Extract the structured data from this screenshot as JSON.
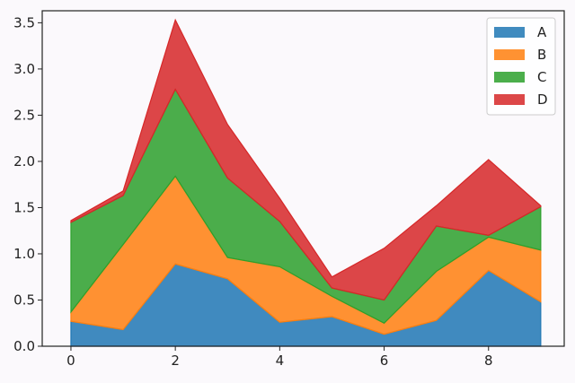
{
  "chart_data": {
    "type": "area",
    "stacked": true,
    "x": [
      0,
      1,
      2,
      3,
      4,
      5,
      6,
      7,
      8,
      9
    ],
    "series": [
      {
        "name": "A",
        "color": "#1f77b4",
        "values": [
          0.27,
          0.18,
          0.89,
          0.73,
          0.26,
          0.32,
          0.13,
          0.28,
          0.82,
          0.48
        ]
      },
      {
        "name": "B",
        "color": "#ff7f0e",
        "values": [
          0.1,
          0.92,
          0.95,
          0.23,
          0.6,
          0.22,
          0.12,
          0.53,
          0.36,
          0.56
        ]
      },
      {
        "name": "C",
        "color": "#2ca02c",
        "values": [
          0.97,
          0.53,
          0.94,
          0.86,
          0.49,
          0.09,
          0.25,
          0.49,
          0.02,
          0.47
        ]
      },
      {
        "name": "D",
        "color": "#d62728",
        "values": [
          0.02,
          0.05,
          0.75,
          0.58,
          0.25,
          0.12,
          0.56,
          0.22,
          0.82,
          0.01
        ]
      }
    ],
    "xlim": [
      -0.55,
      9.45
    ],
    "ylim": [
      0,
      3.63
    ],
    "xticks": [
      0,
      2,
      4,
      6,
      8
    ],
    "xtick_labels": [
      "0",
      "2",
      "4",
      "6",
      "8"
    ],
    "yticks": [
      0,
      0.5,
      1.0,
      1.5,
      2.0,
      2.5,
      3.0,
      3.5
    ],
    "ytick_labels": [
      "0.0",
      "0.5",
      "1.0",
      "1.5",
      "2.0",
      "2.5",
      "3.0",
      "3.5"
    ],
    "title": "",
    "xlabel": "",
    "ylabel": "",
    "grid": false,
    "legend_position": "top-right"
  }
}
